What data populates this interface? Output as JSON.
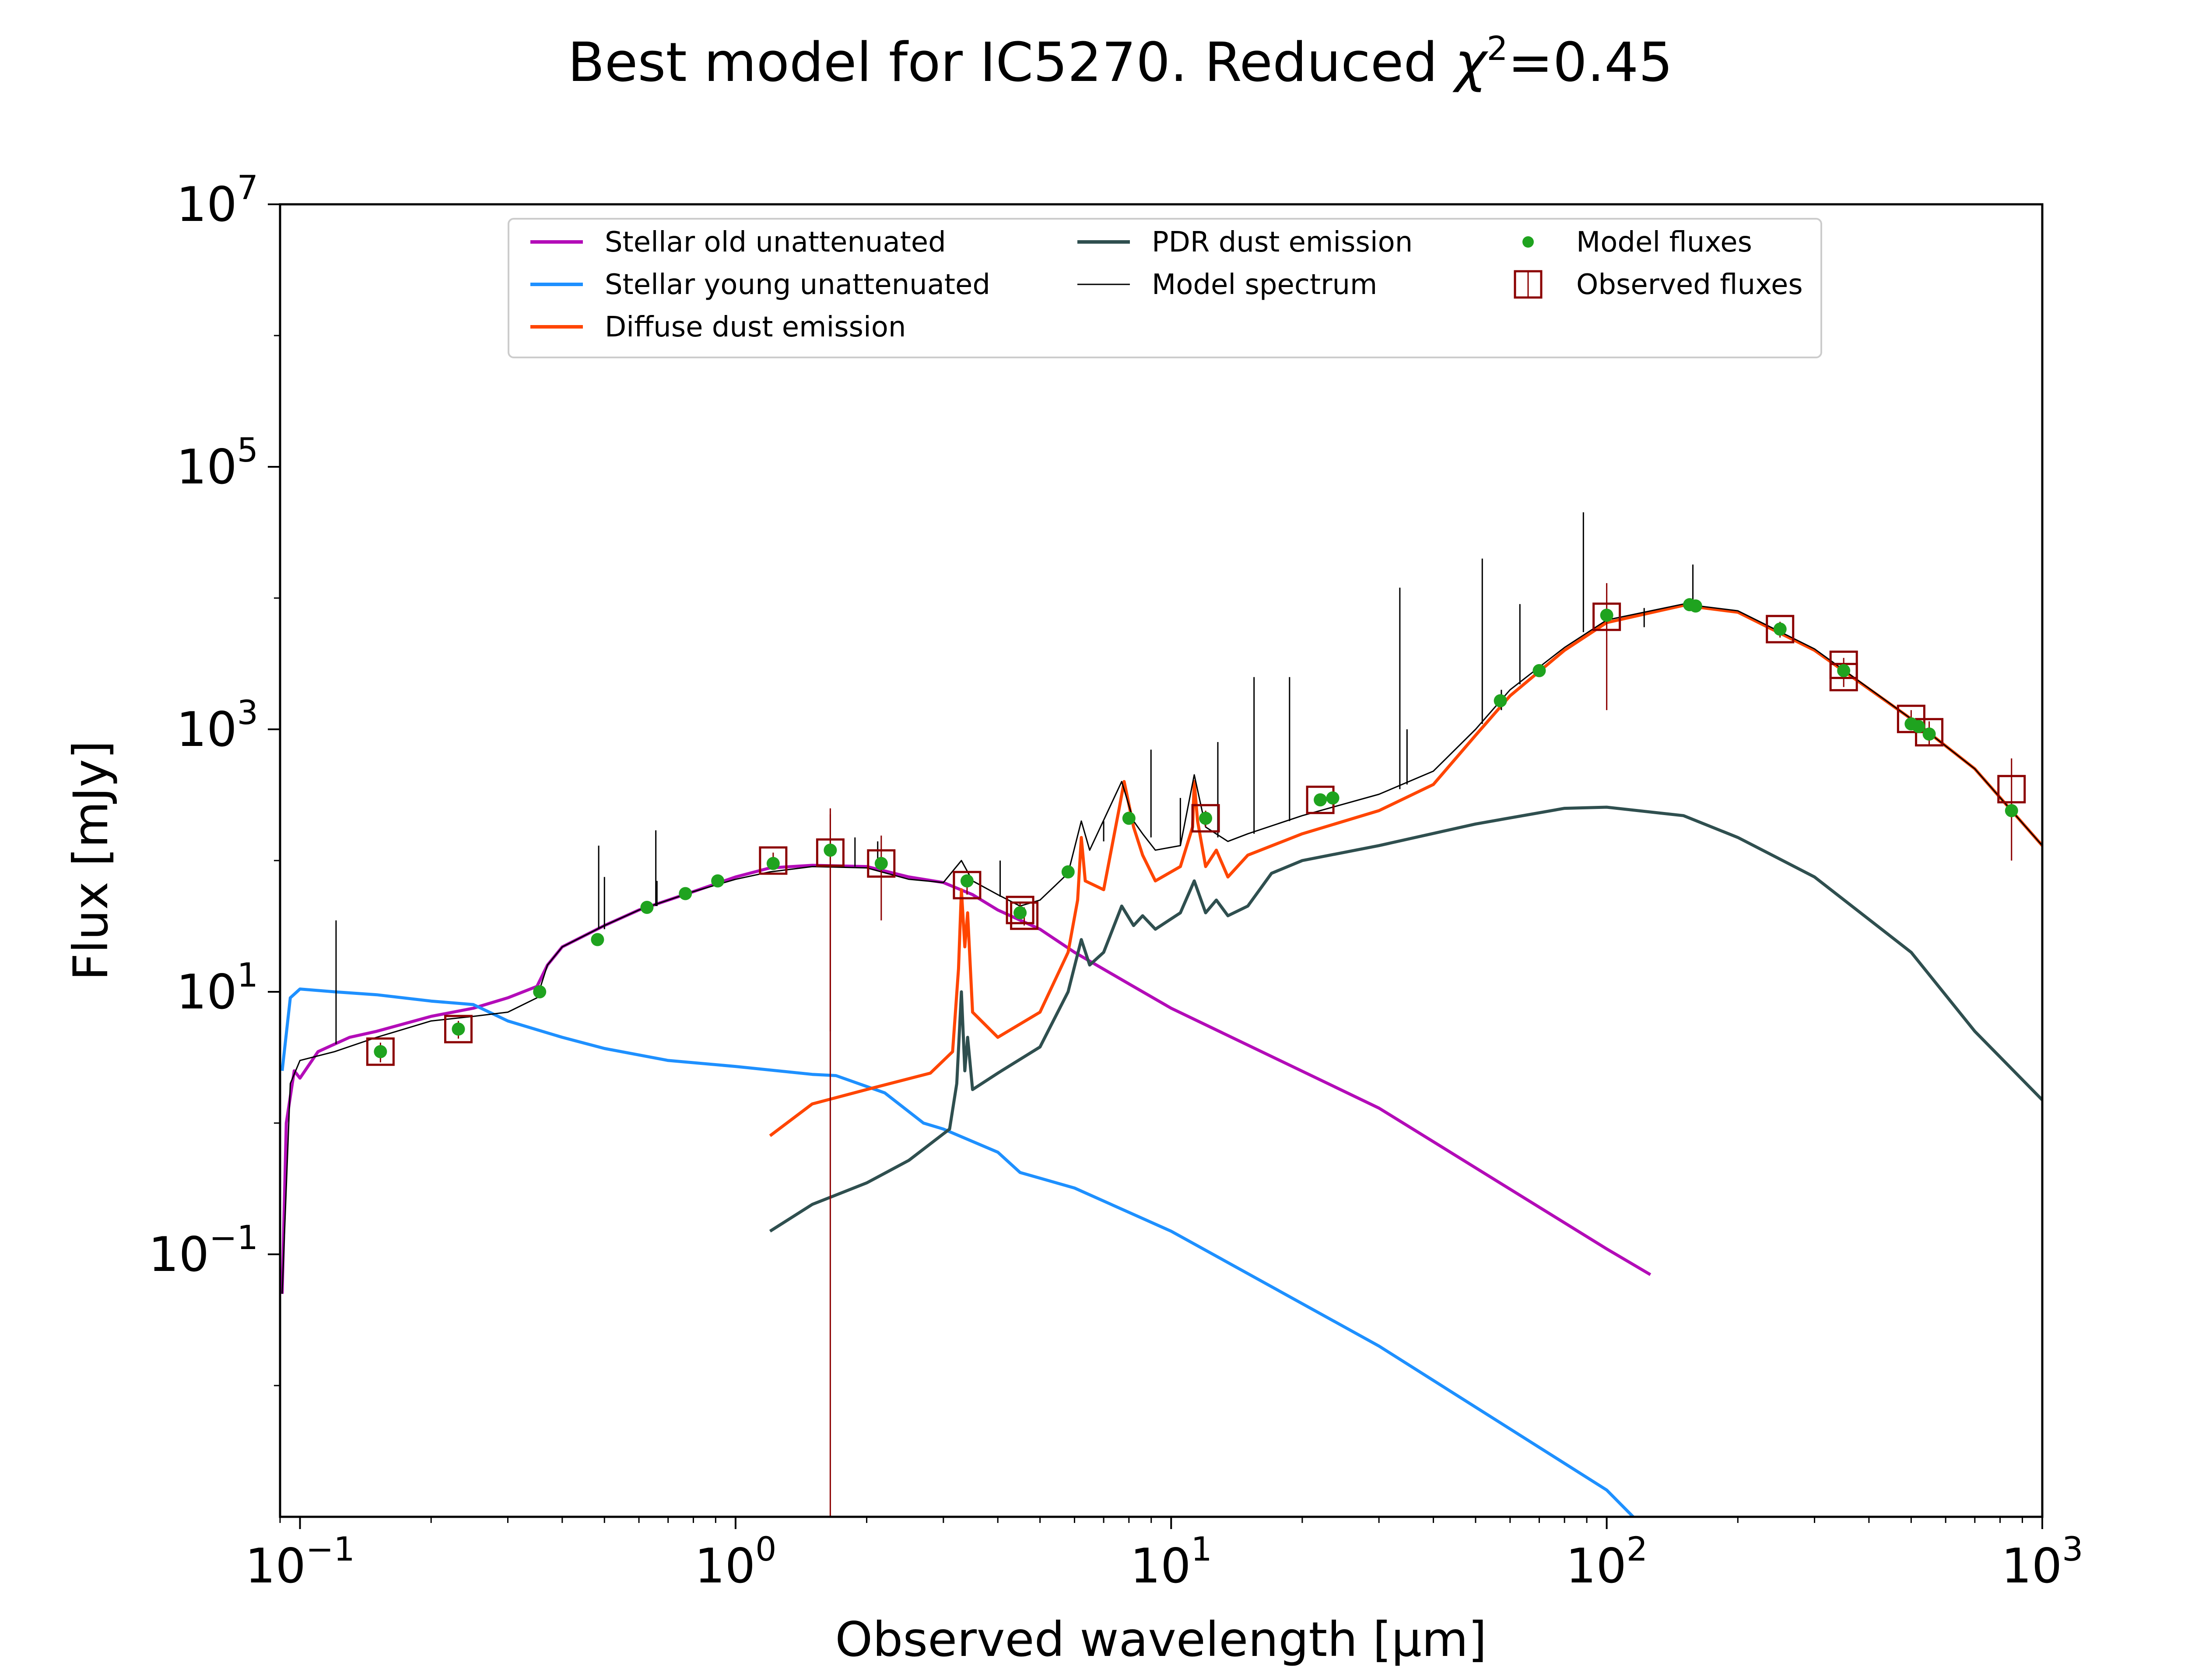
{
  "chart_data": {
    "type": "line",
    "title": "Best model for IC5270. Reduced χ²=0.45",
    "title_parts": {
      "prefix": "Best model for IC5270. Reduced ",
      "chi": "χ",
      "sq": "2",
      "suffix": "=0.45"
    },
    "xlabel": "Observed wavelength [μm]",
    "ylabel": "Flux [mJy]",
    "x_scale": "log",
    "y_scale": "log",
    "xlim": [
      0.09,
      1000
    ],
    "ylim": [
      0.001,
      10000000
    ],
    "x_ticks": [
      {
        "base": "10",
        "exp": "−1",
        "value": 0.1
      },
      {
        "base": "10",
        "exp": "0",
        "value": 1
      },
      {
        "base": "10",
        "exp": "1",
        "value": 10
      },
      {
        "base": "10",
        "exp": "2",
        "value": 100
      },
      {
        "base": "10",
        "exp": "3",
        "value": 1000
      }
    ],
    "y_ticks": [
      {
        "base": "10",
        "exp": "−1",
        "value": 0.1
      },
      {
        "base": "10",
        "exp": "1",
        "value": 10
      },
      {
        "base": "10",
        "exp": "3",
        "value": 1000
      },
      {
        "base": "10",
        "exp": "5",
        "value": 100000
      },
      {
        "base": "10",
        "exp": "7",
        "value": 10000000
      }
    ],
    "grid": false,
    "legend_position": "upper center",
    "legend": [
      {
        "label": "Stellar old unattenuated",
        "kind": "line",
        "color": "#b30cb8",
        "col": 0,
        "row": 0
      },
      {
        "label": "Stellar young unattenuated",
        "kind": "line",
        "color": "#1e90ff",
        "col": 0,
        "row": 1
      },
      {
        "label": "Diffuse dust emission",
        "kind": "line",
        "color": "#ff4500",
        "col": 0,
        "row": 2
      },
      {
        "label": "PDR dust emission",
        "kind": "line",
        "color": "#2f4f4f",
        "col": 1,
        "row": 0
      },
      {
        "label": "Model spectrum",
        "kind": "thinline",
        "color": "#000000",
        "col": 1,
        "row": 1
      },
      {
        "label": "Model fluxes",
        "kind": "dot",
        "color": "#1fa31f",
        "col": 2,
        "row": 0
      },
      {
        "label": "Observed fluxes",
        "kind": "square",
        "color": "#8b0000",
        "col": 2,
        "row": 1
      }
    ],
    "series": [
      {
        "name": "Stellar old unattenuated",
        "color": "#b30cb8",
        "width": 7,
        "points": [
          [
            0.091,
            0.05
          ],
          [
            0.093,
            1
          ],
          [
            0.097,
            2.5
          ],
          [
            0.1,
            2.2
          ],
          [
            0.11,
            3.5
          ],
          [
            0.13,
            4.5
          ],
          [
            0.15,
            5
          ],
          [
            0.2,
            6.5
          ],
          [
            0.25,
            7.5
          ],
          [
            0.3,
            9
          ],
          [
            0.35,
            11
          ],
          [
            0.37,
            16
          ],
          [
            0.4,
            22
          ],
          [
            0.5,
            32
          ],
          [
            0.6,
            42
          ],
          [
            0.8,
            58
          ],
          [
            1,
            75
          ],
          [
            1.2,
            88
          ],
          [
            1.5,
            92
          ],
          [
            2,
            90
          ],
          [
            2.5,
            75
          ],
          [
            3,
            68
          ],
          [
            3.5,
            55
          ],
          [
            4,
            42
          ],
          [
            5,
            30
          ],
          [
            6,
            20
          ],
          [
            8,
            11.5
          ],
          [
            10,
            7.5
          ],
          [
            30,
            1.3
          ],
          [
            100,
            0.11
          ],
          [
            126,
            0.07
          ]
        ]
      },
      {
        "name": "Stellar young unattenuated",
        "color": "#1e90ff",
        "width": 7,
        "points": [
          [
            0.091,
            2.5
          ],
          [
            0.095,
            9
          ],
          [
            0.1,
            10.5
          ],
          [
            0.12,
            10
          ],
          [
            0.15,
            9.5
          ],
          [
            0.2,
            8.5
          ],
          [
            0.25,
            8
          ],
          [
            0.3,
            6
          ],
          [
            0.4,
            4.5
          ],
          [
            0.5,
            3.7
          ],
          [
            0.7,
            3
          ],
          [
            1,
            2.7
          ],
          [
            1.5,
            2.35
          ],
          [
            1.7,
            2.3
          ],
          [
            2.2,
            1.7
          ],
          [
            2.7,
            1.0
          ],
          [
            3,
            0.9
          ],
          [
            4,
            0.6
          ],
          [
            4.5,
            0.42
          ],
          [
            6,
            0.32
          ],
          [
            10,
            0.15
          ],
          [
            30,
            0.02
          ],
          [
            100,
            0.0016
          ],
          [
            115,
            0.001
          ]
        ]
      },
      {
        "name": "Diffuse dust emission",
        "color": "#ff4500",
        "width": 7,
        "points": [
          [
            1.2,
            0.8
          ],
          [
            1.5,
            1.4
          ],
          [
            2,
            1.8
          ],
          [
            2.8,
            2.4
          ],
          [
            3.15,
            3.5
          ],
          [
            3.25,
            15
          ],
          [
            3.3,
            60
          ],
          [
            3.36,
            22
          ],
          [
            3.41,
            40
          ],
          [
            3.5,
            7
          ],
          [
            4,
            4.5
          ],
          [
            5,
            7
          ],
          [
            5.8,
            20
          ],
          [
            6.1,
            50
          ],
          [
            6.22,
            150
          ],
          [
            6.35,
            70
          ],
          [
            7,
            60
          ],
          [
            7.6,
            250
          ],
          [
            7.8,
            400
          ],
          [
            8.2,
            180
          ],
          [
            8.6,
            110
          ],
          [
            9.2,
            70
          ],
          [
            10.5,
            90
          ],
          [
            11.2,
            180
          ],
          [
            11.3,
            400
          ],
          [
            11.5,
            200
          ],
          [
            12,
            90
          ],
          [
            12.7,
            120
          ],
          [
            13.5,
            75
          ],
          [
            15,
            110
          ],
          [
            20,
            160
          ],
          [
            30,
            240
          ],
          [
            40,
            380
          ],
          [
            50,
            900
          ],
          [
            60,
            1800
          ],
          [
            80,
            4000
          ],
          [
            100,
            6500
          ],
          [
            150,
            8800
          ],
          [
            200,
            7800
          ],
          [
            300,
            4000
          ],
          [
            500,
            1200
          ],
          [
            700,
            500
          ],
          [
            1000,
            130
          ]
        ]
      },
      {
        "name": "PDR dust emission",
        "color": "#2f4f4f",
        "width": 7,
        "points": [
          [
            1.2,
            0.15
          ],
          [
            1.5,
            0.24
          ],
          [
            2,
            0.35
          ],
          [
            2.5,
            0.52
          ],
          [
            3.1,
            0.9
          ],
          [
            3.22,
            2
          ],
          [
            3.3,
            10
          ],
          [
            3.36,
            2.5
          ],
          [
            3.41,
            4.5
          ],
          [
            3.5,
            1.8
          ],
          [
            4,
            2.4
          ],
          [
            5,
            3.8
          ],
          [
            5.8,
            10
          ],
          [
            6.22,
            25
          ],
          [
            6.5,
            16
          ],
          [
            7,
            20
          ],
          [
            7.7,
            45
          ],
          [
            8.2,
            32
          ],
          [
            8.6,
            38
          ],
          [
            9.2,
            30
          ],
          [
            10.5,
            40
          ],
          [
            11.3,
            70
          ],
          [
            12,
            40
          ],
          [
            12.7,
            50
          ],
          [
            13.5,
            38
          ],
          [
            15,
            45
          ],
          [
            17,
            80
          ],
          [
            20,
            100
          ],
          [
            30,
            130
          ],
          [
            50,
            190
          ],
          [
            80,
            250
          ],
          [
            100,
            255
          ],
          [
            150,
            220
          ],
          [
            200,
            150
          ],
          [
            300,
            75
          ],
          [
            500,
            20
          ],
          [
            700,
            5
          ],
          [
            1000,
            1.5
          ]
        ]
      },
      {
        "name": "Model spectrum",
        "color": "#000000",
        "width": 3,
        "points": [
          [
            0.091,
            0.05
          ],
          [
            0.095,
            2
          ],
          [
            0.1,
            3
          ],
          [
            0.12,
            3.5
          ],
          [
            0.15,
            4.5
          ],
          [
            0.2,
            6
          ],
          [
            0.25,
            6.5
          ],
          [
            0.3,
            7
          ],
          [
            0.35,
            9
          ],
          [
            0.37,
            16
          ],
          [
            0.4,
            22
          ],
          [
            0.5,
            32
          ],
          [
            0.6,
            42
          ],
          [
            0.8,
            58
          ],
          [
            1,
            72
          ],
          [
            1.2,
            82
          ],
          [
            1.5,
            90
          ],
          [
            2,
            88
          ],
          [
            2.5,
            72
          ],
          [
            3,
            68
          ],
          [
            3.3,
            100
          ],
          [
            3.5,
            70
          ],
          [
            4,
            55
          ],
          [
            4.5,
            45
          ],
          [
            5,
            50
          ],
          [
            5.8,
            80
          ],
          [
            6.22,
            200
          ],
          [
            6.5,
            120
          ],
          [
            7.7,
            400
          ],
          [
            8.2,
            200
          ],
          [
            8.6,
            160
          ],
          [
            9.2,
            120
          ],
          [
            10.5,
            130
          ],
          [
            11.3,
            450
          ],
          [
            12,
            180
          ],
          [
            13.5,
            140
          ],
          [
            15,
            160
          ],
          [
            20,
            220
          ],
          [
            30,
            320
          ],
          [
            40,
            480
          ],
          [
            50,
            1000
          ],
          [
            60,
            2000
          ],
          [
            80,
            4200
          ],
          [
            100,
            6800
          ],
          [
            150,
            9000
          ],
          [
            200,
            8000
          ],
          [
            300,
            4100
          ],
          [
            500,
            1200
          ],
          [
            700,
            500
          ],
          [
            1000,
            130
          ]
        ]
      }
    ],
    "emission_lines": [
      {
        "x": 0.121,
        "top": 35,
        "base": 4
      },
      {
        "x": 0.485,
        "top": 130,
        "base": 30
      },
      {
        "x": 0.5,
        "top": 75,
        "base": 30
      },
      {
        "x": 0.656,
        "top": 170,
        "base": 45
      },
      {
        "x": 0.66,
        "top": 70,
        "base": 45
      },
      {
        "x": 1.88,
        "top": 150,
        "base": 90
      },
      {
        "x": 2.12,
        "top": 140,
        "base": 88
      },
      {
        "x": 4.05,
        "top": 100,
        "base": 53
      },
      {
        "x": 7.0,
        "top": 200,
        "base": 140
      },
      {
        "x": 8.99,
        "top": 700,
        "base": 150
      },
      {
        "x": 10.5,
        "top": 300,
        "base": 130
      },
      {
        "x": 12.8,
        "top": 800,
        "base": 150
      },
      {
        "x": 15.5,
        "top": 2500,
        "base": 160
      },
      {
        "x": 18.7,
        "top": 2500,
        "base": 200
      },
      {
        "x": 33.5,
        "top": 12000,
        "base": 350
      },
      {
        "x": 34.8,
        "top": 1000,
        "base": 380
      },
      {
        "x": 51.8,
        "top": 20000,
        "base": 1100
      },
      {
        "x": 57.3,
        "top": 2000,
        "base": 1400
      },
      {
        "x": 63.2,
        "top": 9000,
        "base": 2200
      },
      {
        "x": 88.4,
        "top": 45000,
        "base": 5500
      },
      {
        "x": 121.9,
        "top": 6000,
        "base": 8400
      },
      {
        "x": 157.7,
        "top": 18000,
        "base": 8700
      }
    ],
    "model_fluxes": [
      [
        0.153,
        3.5
      ],
      [
        0.231,
        5.2
      ],
      [
        0.355,
        10
      ],
      [
        0.482,
        25
      ],
      [
        0.626,
        44
      ],
      [
        0.767,
        56
      ],
      [
        0.91,
        70
      ],
      [
        1.22,
        95
      ],
      [
        1.65,
        120
      ],
      [
        2.16,
        95
      ],
      [
        3.4,
        70
      ],
      [
        4.5,
        40
      ],
      [
        5.8,
        82
      ],
      [
        8.0,
        210
      ],
      [
        12,
        210
      ],
      [
        22,
        290
      ],
      [
        23.5,
        300
      ],
      [
        57,
        1650
      ],
      [
        70,
        2800
      ],
      [
        100,
        7400
      ],
      [
        155,
        8900
      ],
      [
        160,
        8700
      ],
      [
        250,
        5800
      ],
      [
        350,
        2800
      ],
      [
        500,
        1100
      ],
      [
        520,
        1050
      ],
      [
        550,
        920
      ],
      [
        850,
        240
      ]
    ],
    "observed_fluxes": [
      {
        "x": 0.153,
        "y": 3.5,
        "err": 0.6
      },
      {
        "x": 0.231,
        "y": 5.2,
        "err": 0.8
      },
      {
        "x": 1.22,
        "y": 100,
        "err": 15
      },
      {
        "x": 1.65,
        "y": 115,
        "err": 110
      },
      {
        "x": 2.16,
        "y": 95,
        "err": 60
      },
      {
        "x": 3.4,
        "y": 65,
        "err": 10
      },
      {
        "x": 4.5,
        "y": 42,
        "err": 6
      },
      {
        "x": 4.6,
        "y": 38,
        "err": 6
      },
      {
        "x": 12,
        "y": 210,
        "err": 30
      },
      {
        "x": 22,
        "y": 290,
        "err": 30
      },
      {
        "x": 100,
        "y": 7200,
        "err": 5800
      },
      {
        "x": 250,
        "y": 5800,
        "err": 800
      },
      {
        "x": 350,
        "y": 3100,
        "err": 400
      },
      {
        "x": 350,
        "y": 2500,
        "err": 400
      },
      {
        "x": 500,
        "y": 1200,
        "err": 200
      },
      {
        "x": 550,
        "y": 950,
        "err": 200
      },
      {
        "x": 850,
        "y": 350,
        "err": 250
      }
    ],
    "observed_upper_limits": [
      {
        "x": 1.65,
        "y_top": 250,
        "y_bottom": 0.001
      }
    ]
  }
}
